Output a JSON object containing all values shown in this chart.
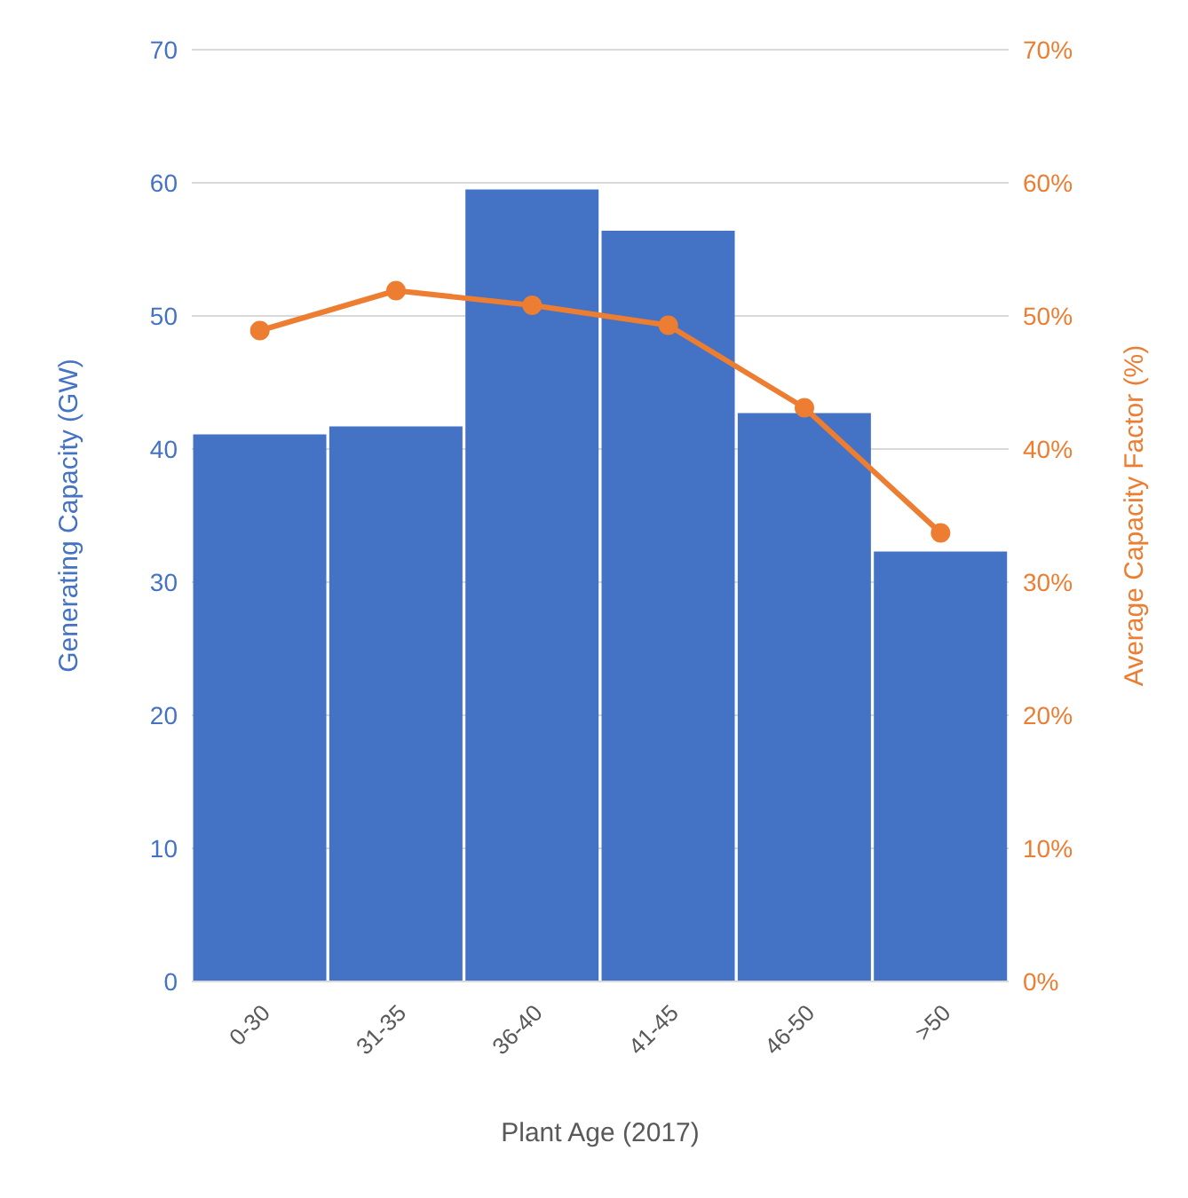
{
  "chart_data": {
    "type": "bar",
    "xlabel": "Plant Age (2017)",
    "ylabel": "Generating Capacity (GW)",
    "y2label": "Average Capacity Factor (%)",
    "categories": [
      "0-30",
      "31-35",
      "36-40",
      "41-45",
      "46-50",
      ">50"
    ],
    "series": [
      {
        "color": "#4472c4",
        "values": [
          41.1,
          41.7,
          59.5,
          56.4,
          42.7,
          32.3
        ]
      },
      {
        "type": "line",
        "axis": "y2",
        "color": "#ed7d31",
        "marker": "circle",
        "values": [
          48.9,
          51.9,
          50.8,
          49.3,
          43.1,
          33.7
        ]
      }
    ],
    "ylim": [
      0,
      70
    ],
    "yticks": [
      0,
      10,
      20,
      30,
      40,
      50,
      60,
      70
    ],
    "y2lim": [
      0,
      70
    ],
    "y2ticks": [
      {
        "value": 0,
        "label": "0%"
      },
      {
        "value": 10,
        "label": "10%"
      },
      {
        "value": 20,
        "label": "20%"
      },
      {
        "value": 30,
        "label": "30%"
      },
      {
        "value": 40,
        "label": "40%"
      },
      {
        "value": 50,
        "label": "50%"
      },
      {
        "value": 60,
        "label": "60%"
      },
      {
        "value": 70,
        "label": "70%"
      }
    ],
    "grid": "y",
    "legend": false
  }
}
